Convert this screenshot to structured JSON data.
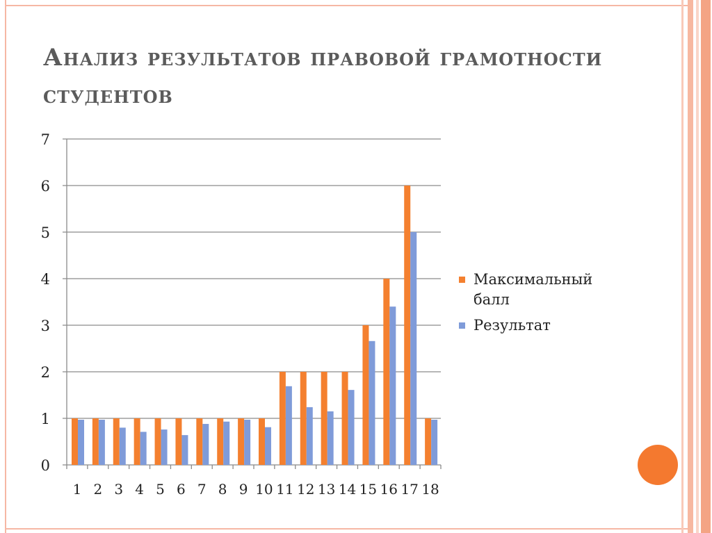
{
  "slide": {
    "title": "Анализ результатов  правовой грамотности студентов"
  },
  "colors": {
    "series_max": "#f4802f",
    "series_result": "#7f9bd9",
    "grid": "#8a8a8a",
    "accent_circle": "#f4792f"
  },
  "chart_data": {
    "type": "bar",
    "categories": [
      "1",
      "2",
      "3",
      "4",
      "5",
      "6",
      "7",
      "8",
      "9",
      "10",
      "11",
      "12",
      "13",
      "14",
      "15",
      "16",
      "17",
      "18"
    ],
    "series": [
      {
        "name": "Максимальный балл",
        "values": [
          1,
          1,
          1,
          1,
          1,
          1,
          1,
          1,
          1,
          1,
          2,
          2,
          2,
          2,
          3,
          4,
          6,
          1
        ]
      },
      {
        "name": "Результат",
        "values": [
          0.97,
          0.97,
          0.8,
          0.71,
          0.76,
          0.64,
          0.88,
          0.93,
          0.97,
          0.81,
          1.69,
          1.24,
          1.15,
          1.61,
          2.66,
          3.4,
          5.0,
          0.97
        ]
      }
    ],
    "title": "",
    "xlabel": "",
    "ylabel": "",
    "ylim": [
      0,
      7
    ],
    "yticks": [
      0,
      1,
      2,
      3,
      4,
      5,
      6,
      7
    ],
    "grid": true,
    "legend_position": "right"
  }
}
